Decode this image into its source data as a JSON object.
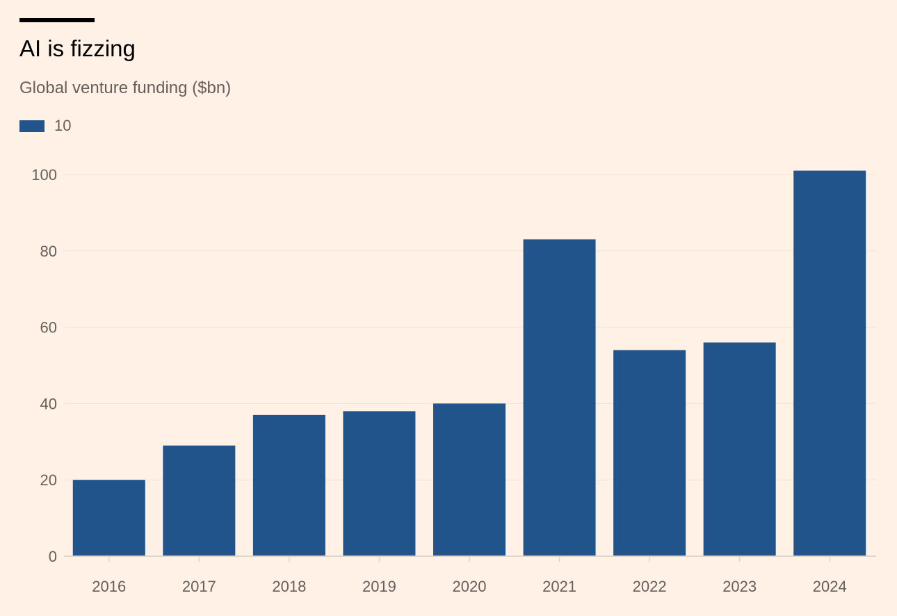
{
  "colors": {
    "background": "#FFF1E5",
    "bar": "#21548B",
    "gridline": "#F2E2D6",
    "axis": "#E3D3C7",
    "text_muted": "#66605C",
    "title_text": "#000000"
  },
  "chart_data": {
    "type": "bar",
    "title": "AI is fizzing",
    "subtitle": "Global venture funding ($bn)",
    "legend": {
      "position": "top-left",
      "entries": [
        {
          "label": "10"
        }
      ]
    },
    "categories": [
      "2016",
      "2017",
      "2018",
      "2019",
      "2020",
      "2021",
      "2022",
      "2023",
      "2024"
    ],
    "series": [
      {
        "name": "10",
        "values": [
          20,
          29,
          37,
          38,
          40,
          83,
          54,
          56,
          101
        ]
      }
    ],
    "ylim": [
      0,
      100
    ],
    "yticks": [
      0,
      20,
      40,
      60,
      80,
      100
    ],
    "grid": true,
    "xlabel": "",
    "ylabel": ""
  }
}
